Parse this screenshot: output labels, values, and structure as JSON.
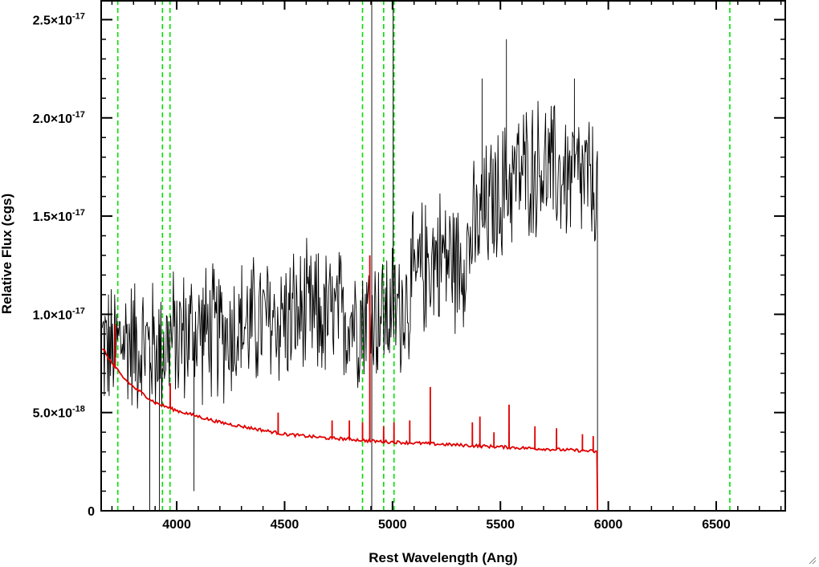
{
  "chart_data": {
    "type": "line",
    "title": "",
    "xlabel": "Rest Wavelength (Ang)",
    "ylabel": "Relative Flux (cgs)",
    "xlim": [
      3650,
      6820
    ],
    "ylim": [
      0,
      2.6e-17
    ],
    "x_ticks": [
      {
        "value": 4000,
        "label": "4000"
      },
      {
        "value": 4500,
        "label": "4500"
      },
      {
        "value": 5000,
        "label": "5000"
      },
      {
        "value": 5500,
        "label": "5500"
      },
      {
        "value": 6000,
        "label": "6000"
      },
      {
        "value": 6500,
        "label": "6500"
      }
    ],
    "y_ticks": [
      {
        "value": 0,
        "mantissa": "0",
        "exponent": ""
      },
      {
        "value": 5e-18,
        "mantissa": "5.0×10",
        "exponent": "-18"
      },
      {
        "value": 1e-17,
        "mantissa": "1.0×10",
        "exponent": "-17"
      },
      {
        "value": 1.5e-17,
        "mantissa": "1.5×10",
        "exponent": "-17"
      },
      {
        "value": 2e-17,
        "mantissa": "2.0×10",
        "exponent": "-17"
      },
      {
        "value": 2.5e-17,
        "mantissa": "2.5×10",
        "exponent": "-17"
      }
    ],
    "grid": false,
    "legend": "none",
    "series": [
      {
        "color": "#000000",
        "style": "noisy-line",
        "x": [
          3655,
          3700,
          3750,
          3800,
          3850,
          3900,
          3950,
          4000,
          4100,
          4200,
          4300,
          4400,
          4500,
          4600,
          4700,
          4800,
          4861,
          4900,
          4959,
          5007,
          5050,
          5100,
          5150,
          5200,
          5250,
          5300,
          5350,
          5400,
          5450,
          5500,
          5550,
          5600,
          5650,
          5700,
          5750,
          5800,
          5850,
          5900,
          5940,
          5950
        ],
        "y": [
          8.5e-18,
          8e-18,
          8.8e-18,
          8.6e-18,
          8.4e-18,
          8.3e-18,
          8.5e-18,
          8.8e-18,
          9.2e-18,
          9e-18,
          9.4e-18,
          9.6e-18,
          9.8e-18,
          9.9e-18,
          9.8e-18,
          9.9e-18,
          1e-17,
          1.01e-17,
          1e-17,
          1.02e-17,
          1.05e-17,
          1.15e-17,
          1.25e-17,
          1.3e-17,
          1.3e-17,
          1.25e-17,
          1.35e-17,
          1.45e-17,
          1.55e-17,
          1.6e-17,
          1.7e-17,
          1.72e-17,
          1.75e-17,
          1.75e-17,
          1.72e-17,
          1.7e-17,
          1.7e-17,
          1.68e-17,
          1.62e-17,
          1.6e-17
        ],
        "noise_amplitude": 3.2e-18,
        "spikes": [
          {
            "x": 4904,
            "y": 2.6e-17
          },
          {
            "x": 4904,
            "y": 0
          },
          {
            "x": 5003,
            "y": 2.6e-17
          },
          {
            "x": 5528,
            "y": 2.4e-17
          },
          {
            "x": 5415,
            "y": 2.2e-17
          },
          {
            "x": 5843,
            "y": 2.2e-17
          },
          {
            "x": 4080,
            "y": 1e-18
          },
          {
            "x": 3875,
            "y": 0
          },
          {
            "x": 3920,
            "y": 0
          }
        ],
        "drop_to_zero_after": 5950
      },
      {
        "color": "#e00000",
        "style": "model-line",
        "x": [
          3655,
          3700,
          3750,
          3800,
          3850,
          3900,
          3950,
          4000,
          4100,
          4200,
          4300,
          4400,
          4500,
          4600,
          4700,
          4800,
          4900,
          5000,
          5100,
          5200,
          5300,
          5400,
          5500,
          5600,
          5700,
          5800,
          5900,
          5950
        ],
        "y": [
          8.3e-18,
          7.5e-18,
          6.8e-18,
          6.3e-18,
          5.9e-18,
          5.5e-18,
          5.3e-18,
          5.1e-18,
          4.8e-18,
          4.5e-18,
          4.3e-18,
          4.1e-18,
          3.9e-18,
          3.8e-18,
          3.7e-18,
          3.65e-18,
          3.55e-18,
          3.5e-18,
          3.45e-18,
          3.4e-18,
          3.35e-18,
          3.3e-18,
          3.25e-18,
          3.2e-18,
          3.15e-18,
          3.1e-18,
          3.05e-18,
          3e-18
        ],
        "spikes": [
          {
            "x": 3715,
            "y": 9.5e-18
          },
          {
            "x": 3970,
            "y": 6.5e-18
          },
          {
            "x": 4470,
            "y": 5e-18
          },
          {
            "x": 4720,
            "y": 4.6e-18
          },
          {
            "x": 4800,
            "y": 4.6e-18
          },
          {
            "x": 4861,
            "y": 4.5e-18
          },
          {
            "x": 4895,
            "y": 1.3e-17
          },
          {
            "x": 4959,
            "y": 4.3e-18
          },
          {
            "x": 5007,
            "y": 4.5e-18
          },
          {
            "x": 5080,
            "y": 4.6e-18
          },
          {
            "x": 5175,
            "y": 6.3e-18
          },
          {
            "x": 5370,
            "y": 4.5e-18
          },
          {
            "x": 5405,
            "y": 4.8e-18
          },
          {
            "x": 5470,
            "y": 4e-18
          },
          {
            "x": 5540,
            "y": 5.4e-18
          },
          {
            "x": 5660,
            "y": 4.3e-18
          },
          {
            "x": 5760,
            "y": 4.2e-18
          },
          {
            "x": 5880,
            "y": 3.9e-18
          },
          {
            "x": 5930,
            "y": 3.8e-18
          }
        ],
        "drop_to_zero_after": 5950
      }
    ],
    "vertical_lines": [
      {
        "x": 3727,
        "color": "#00e000",
        "style": "dashed"
      },
      {
        "x": 3934,
        "color": "#00e000",
        "style": "dashed"
      },
      {
        "x": 3969,
        "color": "#00e000",
        "style": "dashed"
      },
      {
        "x": 4861,
        "color": "#00e000",
        "style": "dashed"
      },
      {
        "x": 4959,
        "color": "#00e000",
        "style": "dashed"
      },
      {
        "x": 5007,
        "color": "#00e000",
        "style": "dashed"
      },
      {
        "x": 6563,
        "color": "#00e000",
        "style": "dashed"
      }
    ]
  }
}
